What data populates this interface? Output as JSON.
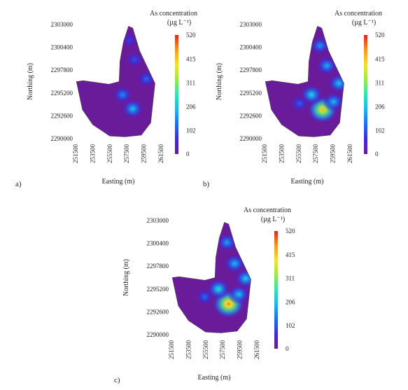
{
  "figure": {
    "panel_labels": [
      "a)",
      "b)",
      "c)"
    ]
  },
  "chart_data": [
    {
      "type": "heatmap",
      "panel_label": "a)",
      "xlabel": "Easting (m)",
      "ylabel": "Northing (m)",
      "x_ticks": [
        251500,
        253500,
        255500,
        257500,
        259500,
        261500
      ],
      "y_ticks": [
        2290000,
        2292600,
        2295200,
        2297800,
        2300400,
        2303000
      ],
      "xlim": [
        251500,
        261500
      ],
      "ylim": [
        2290000,
        2303000
      ],
      "colorbar": {
        "title_line1": "As concentration",
        "title_line2": "(µg L⁻¹)",
        "ticks": [
          520,
          415,
          311,
          206,
          102,
          0
        ],
        "range": [
          0,
          520
        ],
        "colormap": [
          "#6a1b9a",
          "#3f2bd6",
          "#1e6df0",
          "#1fb6e8",
          "#2ee6b0",
          "#9be84a",
          "#f2e330",
          "#f39a1f",
          "#e8201c"
        ]
      },
      "boundary": [
        [
          257700,
          2302800
        ],
        [
          258200,
          2302600
        ],
        [
          259000,
          2300000
        ],
        [
          260800,
          2296300
        ],
        [
          260300,
          2291800
        ],
        [
          259200,
          2290400
        ],
        [
          257300,
          2290200
        ],
        [
          255500,
          2290300
        ],
        [
          253500,
          2291600
        ],
        [
          252300,
          2293300
        ],
        [
          251600,
          2296500
        ],
        [
          252400,
          2296600
        ],
        [
          255400,
          2296200
        ],
        [
          256600,
          2296500
        ],
        [
          256700,
          2298800
        ],
        [
          257100,
          2301000
        ]
      ],
      "peak_As": 220,
      "hotspots": [
        {
          "x": 258200,
          "y": 2293400,
          "as": 210
        },
        {
          "x": 257000,
          "y": 2295000,
          "as": 160
        },
        {
          "x": 259800,
          "y": 2296800,
          "as": 130
        },
        {
          "x": 258400,
          "y": 2299000,
          "as": 110
        },
        {
          "x": 257800,
          "y": 2301200,
          "as": 90
        }
      ]
    },
    {
      "type": "heatmap",
      "panel_label": "b)",
      "xlabel": "Easting (m)",
      "ylabel": "Northing (m)",
      "x_ticks": [
        251500,
        253500,
        255500,
        257500,
        259500,
        261500
      ],
      "y_ticks": [
        2290000,
        2292600,
        2295200,
        2297800,
        2300400,
        2303000
      ],
      "xlim": [
        251500,
        261500
      ],
      "ylim": [
        2290000,
        2303000
      ],
      "colorbar": {
        "title_line1": "As concentration",
        "title_line2": "(µg L⁻¹)",
        "ticks": [
          520,
          415,
          311,
          206,
          102,
          0
        ],
        "range": [
          0,
          520
        ],
        "colormap": [
          "#6a1b9a",
          "#3f2bd6",
          "#1e6df0",
          "#1fb6e8",
          "#2ee6b0",
          "#9be84a",
          "#f2e330",
          "#f39a1f",
          "#e8201c"
        ]
      },
      "boundary": [
        [
          257700,
          2302800
        ],
        [
          258200,
          2302600
        ],
        [
          259000,
          2300000
        ],
        [
          260800,
          2296300
        ],
        [
          260300,
          2291800
        ],
        [
          259200,
          2290400
        ],
        [
          257300,
          2290200
        ],
        [
          255500,
          2290300
        ],
        [
          253500,
          2291600
        ],
        [
          252300,
          2293300
        ],
        [
          251600,
          2296500
        ],
        [
          252400,
          2296600
        ],
        [
          255400,
          2296200
        ],
        [
          256600,
          2296500
        ],
        [
          256700,
          2298800
        ],
        [
          257100,
          2301000
        ]
      ],
      "peak_As": 440,
      "hotspots": [
        {
          "x": 258300,
          "y": 2293300,
          "as": 430
        },
        {
          "x": 257000,
          "y": 2295000,
          "as": 230
        },
        {
          "x": 259600,
          "y": 2294200,
          "as": 200
        },
        {
          "x": 260200,
          "y": 2296300,
          "as": 210
        },
        {
          "x": 258800,
          "y": 2298300,
          "as": 190
        },
        {
          "x": 258000,
          "y": 2300600,
          "as": 170
        },
        {
          "x": 255600,
          "y": 2294000,
          "as": 120
        }
      ]
    },
    {
      "type": "heatmap",
      "panel_label": "c)",
      "xlabel": "Easting (m)",
      "ylabel": "Northing (m)",
      "x_ticks": [
        251500,
        253500,
        255500,
        257500,
        259500,
        261500
      ],
      "y_ticks": [
        2290000,
        2292600,
        2295200,
        2297800,
        2300400,
        2303000
      ],
      "xlim": [
        251500,
        261500
      ],
      "ylim": [
        2290000,
        2303000
      ],
      "colorbar": {
        "title_line1": "As concentration",
        "title_line2": "(µg L⁻¹)",
        "ticks": [
          520,
          415,
          311,
          206,
          102,
          0
        ],
        "range": [
          0,
          520
        ],
        "colormap": [
          "#6a1b9a",
          "#3f2bd6",
          "#1e6df0",
          "#1fb6e8",
          "#2ee6b0",
          "#9be84a",
          "#f2e330",
          "#f39a1f",
          "#e8201c"
        ]
      },
      "boundary": [
        [
          257700,
          2302800
        ],
        [
          258200,
          2302600
        ],
        [
          259000,
          2300000
        ],
        [
          260800,
          2296300
        ],
        [
          260300,
          2291800
        ],
        [
          259200,
          2290400
        ],
        [
          257300,
          2290200
        ],
        [
          255500,
          2290300
        ],
        [
          253500,
          2291600
        ],
        [
          252300,
          2293300
        ],
        [
          251600,
          2296500
        ],
        [
          252400,
          2296600
        ],
        [
          255400,
          2296200
        ],
        [
          256600,
          2296500
        ],
        [
          256700,
          2298800
        ],
        [
          257100,
          2301000
        ]
      ],
      "peak_As": 480,
      "hotspots": [
        {
          "x": 258200,
          "y": 2293500,
          "as": 470
        },
        {
          "x": 257000,
          "y": 2295200,
          "as": 240
        },
        {
          "x": 259400,
          "y": 2294600,
          "as": 210
        },
        {
          "x": 260200,
          "y": 2296400,
          "as": 220
        },
        {
          "x": 258900,
          "y": 2298100,
          "as": 200
        },
        {
          "x": 258000,
          "y": 2300500,
          "as": 180
        },
        {
          "x": 255400,
          "y": 2294300,
          "as": 130
        }
      ]
    }
  ]
}
